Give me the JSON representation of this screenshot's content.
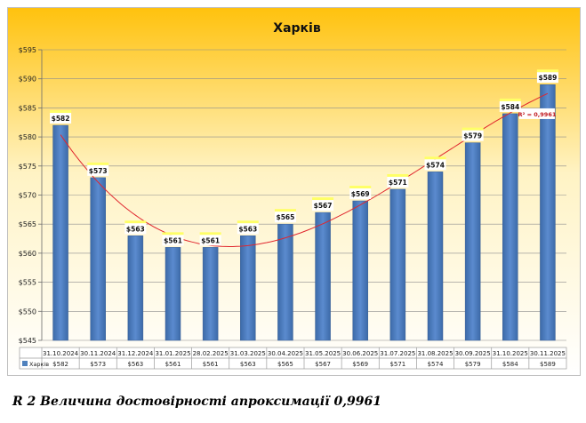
{
  "caption": "R 2 Величина достовірності апроксимації 0,9961",
  "chart_data": {
    "type": "bar",
    "title": "Харків",
    "series_name": "Харків",
    "categories": [
      "31.10.2024",
      "30.11.2024",
      "31.12.2024",
      "31.01.2025",
      "28.02.2025",
      "31.03.2025",
      "30.04.2025",
      "31.05.2025",
      "30.06.2025",
      "31.07.2025",
      "31.08.2025",
      "30.09.2025",
      "31.10.2025",
      "30.11.2025"
    ],
    "values": [
      582,
      573,
      563,
      561,
      561,
      563,
      565,
      567,
      569,
      571,
      574,
      579,
      584,
      589
    ],
    "labels": [
      "$582",
      "$573",
      "$563",
      "$561",
      "$561",
      "$563",
      "$565",
      "$567",
      "$569",
      "$571",
      "$574",
      "$579",
      "$584",
      "$589"
    ],
    "y_ticks": [
      545,
      550,
      555,
      560,
      565,
      570,
      575,
      580,
      585,
      590,
      595
    ],
    "y_tick_labels": [
      "$545",
      "$550",
      "$555",
      "$560",
      "$565",
      "$570",
      "$575",
      "$580",
      "$585",
      "$590",
      "$595"
    ],
    "ylim": [
      545,
      595
    ],
    "trendline": {
      "type": "polynomial",
      "r2_label": "R² = 0,9961"
    },
    "data_table": true,
    "colors": {
      "bar": "#4f81bd",
      "trend": "#e0262e",
      "label_bg": "#ffff66",
      "title_band": "#ffc000"
    }
  }
}
